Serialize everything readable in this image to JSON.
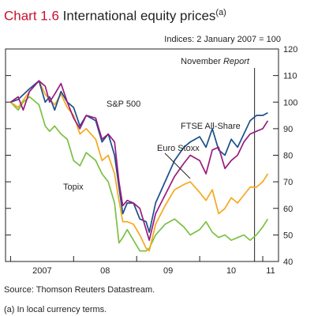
{
  "header": {
    "chart_number": "Chart 1.6",
    "title": "International equity prices",
    "footnote_marker": "(a)"
  },
  "source": "Source:  Thomson Reuters Datastream.",
  "footnote": "(a)  In local currency terms.",
  "colors": {
    "ftse": "#1a4f8b",
    "sp500": "#9b1b7e",
    "eurostoxx": "#f5a81c",
    "topix": "#7ac143",
    "title_accent": "#c8102e"
  },
  "chart_data": {
    "type": "line",
    "units_note": "Indices: 2 January 2007 = 100",
    "ylim": [
      40,
      120
    ],
    "yticks": [
      40,
      50,
      60,
      70,
      80,
      90,
      100,
      110,
      120
    ],
    "xlim": [
      2006.92,
      2011.25
    ],
    "x_tick_years": [
      2007,
      2008,
      2009,
      2010,
      2011
    ],
    "x_tick_labels": [
      "2007",
      "08",
      "09",
      "10",
      "11"
    ],
    "annotation": {
      "label_prefix": "November ",
      "label_italic": "Report",
      "x": 2010.87
    },
    "series": [
      {
        "name": "FTSE All-Share",
        "color_key": "ftse",
        "x": [
          2007.0,
          2007.12,
          2007.3,
          2007.45,
          2007.55,
          2007.62,
          2007.7,
          2007.8,
          2007.9,
          2008.0,
          2008.1,
          2008.2,
          2008.35,
          2008.45,
          2008.55,
          2008.65,
          2008.72,
          2008.78,
          2008.85,
          2008.95,
          2009.05,
          2009.15,
          2009.2,
          2009.3,
          2009.45,
          2009.6,
          2009.75,
          2009.85,
          2010.0,
          2010.1,
          2010.2,
          2010.3,
          2010.4,
          2010.5,
          2010.6,
          2010.7,
          2010.8,
          2010.9,
          2011.0,
          2011.08
        ],
        "values": [
          100,
          101,
          105,
          108,
          100,
          102,
          97,
          104,
          100,
          98,
          91,
          95,
          93,
          85,
          88,
          80,
          68,
          58,
          62,
          62,
          56,
          55,
          51,
          62,
          70,
          78,
          83,
          85,
          87,
          83,
          90,
          82,
          80,
          86,
          83,
          88,
          93,
          95,
          95,
          96
        ]
      },
      {
        "name": "S&P 500",
        "color_key": "sp500",
        "x": [
          2007.0,
          2007.12,
          2007.2,
          2007.3,
          2007.45,
          2007.55,
          2007.62,
          2007.7,
          2007.8,
          2007.9,
          2008.0,
          2008.1,
          2008.2,
          2008.35,
          2008.45,
          2008.55,
          2008.65,
          2008.72,
          2008.78,
          2008.85,
          2008.95,
          2009.05,
          2009.15,
          2009.2,
          2009.3,
          2009.45,
          2009.6,
          2009.75,
          2009.85,
          2010.0,
          2010.1,
          2010.2,
          2010.3,
          2010.4,
          2010.5,
          2010.6,
          2010.7,
          2010.8,
          2010.9,
          2011.0,
          2011.08
        ],
        "values": [
          100,
          102,
          97,
          104,
          108,
          106,
          100,
          103,
          107,
          100,
          94,
          90,
          95,
          94,
          86,
          88,
          85,
          70,
          61,
          63,
          62,
          60,
          52,
          48,
          58,
          65,
          72,
          77,
          80,
          78,
          73,
          82,
          83,
          75,
          78,
          80,
          85,
          88,
          89,
          90,
          93
        ]
      },
      {
        "name": "Euro Stoxx",
        "color_key": "eurostoxx",
        "x": [
          2007.0,
          2007.12,
          2007.3,
          2007.45,
          2007.55,
          2007.62,
          2007.7,
          2007.8,
          2007.9,
          2008.0,
          2008.1,
          2008.2,
          2008.35,
          2008.45,
          2008.55,
          2008.65,
          2008.72,
          2008.78,
          2008.85,
          2008.95,
          2009.05,
          2009.15,
          2009.2,
          2009.3,
          2009.45,
          2009.6,
          2009.75,
          2009.85,
          2010.0,
          2010.1,
          2010.2,
          2010.3,
          2010.4,
          2010.5,
          2010.6,
          2010.7,
          2010.8,
          2010.9,
          2011.0,
          2011.08
        ],
        "values": [
          100,
          98,
          104,
          108,
          103,
          101,
          99,
          103,
          98,
          95,
          88,
          90,
          86,
          78,
          80,
          73,
          63,
          55,
          55,
          54,
          50,
          45,
          44,
          54,
          61,
          67,
          69,
          70,
          66,
          63,
          67,
          58,
          60,
          64,
          62,
          65,
          68,
          68,
          70,
          73
        ]
      },
      {
        "name": "Topix",
        "color_key": "topix",
        "x": [
          2007.0,
          2007.12,
          2007.2,
          2007.3,
          2007.45,
          2007.55,
          2007.62,
          2007.7,
          2007.8,
          2007.9,
          2008.0,
          2008.1,
          2008.2,
          2008.35,
          2008.45,
          2008.55,
          2008.65,
          2008.72,
          2008.78,
          2008.85,
          2008.95,
          2009.05,
          2009.15,
          2009.2,
          2009.3,
          2009.45,
          2009.6,
          2009.75,
          2009.85,
          2010.0,
          2010.1,
          2010.2,
          2010.3,
          2010.4,
          2010.5,
          2010.6,
          2010.7,
          2010.8,
          2010.9,
          2011.0,
          2011.08
        ],
        "values": [
          100,
          97,
          100,
          102,
          99,
          91,
          89,
          91,
          88,
          86,
          78,
          76,
          81,
          78,
          73,
          70,
          62,
          47,
          49,
          52,
          48,
          44,
          44,
          45,
          50,
          54,
          56,
          53,
          50,
          52,
          55,
          51,
          49,
          50,
          48,
          49,
          50,
          48,
          50,
          53,
          56
        ]
      }
    ],
    "series_labels": [
      {
        "series": 1,
        "text": "S&P 500"
      },
      {
        "series": 0,
        "text": "FTSE All-Share"
      },
      {
        "series": 2,
        "text": "Euro Stoxx"
      },
      {
        "series": 3,
        "text": "Topix"
      }
    ]
  }
}
